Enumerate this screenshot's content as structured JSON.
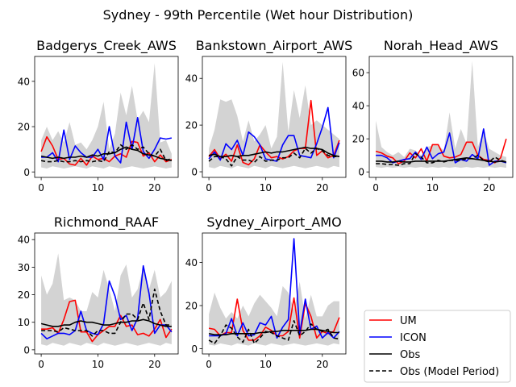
{
  "chart_data": {
    "suptitle": "Sydney - 99th Percentile (Wet hour Distribution)",
    "legend": {
      "placement": "bottom-right",
      "entries": [
        {
          "label": "UM",
          "color": "#ff0000",
          "style": "solid"
        },
        {
          "label": "ICON",
          "color": "#0000ff",
          "style": "solid"
        },
        {
          "label": "Obs",
          "color": "#000000",
          "style": "solid"
        },
        {
          "label": "Obs (Model Period)",
          "color": "#000000",
          "style": "dashed"
        }
      ]
    },
    "band_color": "#d3d3d3",
    "panels": [
      {
        "title": "Badgerys_Creek_AWS",
        "type": "line",
        "x": [
          0,
          1,
          2,
          3,
          4,
          5,
          6,
          7,
          8,
          9,
          10,
          11,
          12,
          13,
          14,
          15,
          16,
          17,
          18,
          19,
          20,
          21,
          22,
          23
        ],
        "xticks": [
          0,
          10,
          20
        ],
        "xlim": [
          -1.15,
          24.15
        ],
        "ylim": [
          -2.4,
          51
        ],
        "yticks": [
          0,
          20,
          40
        ],
        "band_low": [
          2,
          1.5,
          2.5,
          2,
          1.5,
          2,
          2.5,
          2,
          1.5,
          2.5,
          2,
          1.5,
          2.5,
          2,
          1.5,
          2,
          2.5,
          2,
          1.5,
          2,
          2.5,
          2,
          1.5,
          2
        ],
        "band_high": [
          14,
          20,
          14,
          18,
          13,
          22,
          12,
          13,
          10,
          14,
          20,
          31,
          10,
          17,
          35,
          25,
          38,
          23,
          27,
          22,
          48,
          13,
          14,
          8
        ],
        "series": [
          {
            "name": "UM",
            "color": "#ff0000",
            "dash": false,
            "values": [
              9,
              15.5,
              11.5,
              5.5,
              6,
              3.5,
              3,
              6,
              3,
              7,
              5.5,
              6,
              4.5,
              7,
              8,
              6.5,
              13.5,
              13,
              7,
              8.5,
              4.5,
              7.5,
              4.5,
              5.5
            ]
          },
          {
            "name": "ICON",
            "color": "#0000ff",
            "dash": false,
            "values": [
              6.5,
              6.5,
              8.5,
              4.5,
              18.5,
              5.5,
              11.5,
              8.5,
              6.5,
              6.5,
              10,
              5.5,
              20,
              7,
              4,
              22,
              10,
              24,
              9,
              6,
              10,
              15,
              14.5,
              15
            ]
          },
          {
            "name": "Obs",
            "color": "#000000",
            "dash": false,
            "values": [
              7,
              6.5,
              6,
              6.5,
              6,
              6.5,
              6.5,
              7,
              6.5,
              7.5,
              7,
              8,
              8,
              8.5,
              10,
              11,
              10,
              9.5,
              8,
              7.5,
              7,
              6,
              5.5,
              5
            ]
          },
          {
            "name": "Obs (Model Period)",
            "color": "#000000",
            "dash": true,
            "values": [
              5,
              4.5,
              4.5,
              5,
              4.5,
              4.5,
              5,
              4.5,
              5,
              4.5,
              5,
              4.5,
              9,
              8.5,
              12,
              10,
              12,
              10,
              11,
              8,
              7,
              10,
              5,
              6
            ]
          }
        ]
      },
      {
        "title": "Bankstown_Airport_AWS",
        "type": "line",
        "x": [
          0,
          1,
          2,
          3,
          4,
          5,
          6,
          7,
          8,
          9,
          10,
          11,
          12,
          13,
          14,
          15,
          16,
          17,
          18,
          19,
          20,
          21,
          22,
          23
        ],
        "xticks": [
          0,
          10,
          20
        ],
        "xlim": [
          -1.15,
          24.15
        ],
        "ylim": [
          -2.4,
          49.4
        ],
        "yticks": [
          0,
          20,
          40
        ],
        "band_low": [
          2,
          1.5,
          2.5,
          2,
          1.5,
          2.5,
          2,
          1.5,
          2.5,
          2,
          1.5,
          2.5,
          2,
          1.5,
          2,
          2.5,
          2,
          1.5,
          2,
          2.5,
          2,
          1.5,
          2.5,
          2
        ],
        "band_high": [
          10,
          18,
          31,
          30,
          31,
          24,
          13,
          22,
          13,
          16,
          20,
          10,
          15,
          47,
          17,
          35,
          23,
          37,
          20,
          22,
          20,
          18,
          16,
          14
        ],
        "series": [
          {
            "name": "UM",
            "color": "#ff0000",
            "dash": false,
            "values": [
              6.5,
              9.5,
              5.5,
              7.5,
              4.5,
              11.5,
              4,
              3,
              5.5,
              11.5,
              8.5,
              6,
              6.5,
              5.5,
              6.5,
              9,
              10,
              10,
              30.5,
              7,
              9,
              6,
              7,
              13.5
            ]
          },
          {
            "name": "ICON",
            "color": "#0000ff",
            "dash": false,
            "values": [
              5.5,
              8.5,
              5,
              12,
              9.5,
              13.5,
              7,
              17,
              15,
              11.5,
              5.5,
              5,
              4.5,
              11.5,
              15.5,
              15.5,
              7,
              6.5,
              6,
              12,
              19,
              27.5,
              6,
              12.5
            ]
          },
          {
            "name": "Obs",
            "color": "#000000",
            "dash": false,
            "values": [
              7,
              7.5,
              6.5,
              6.5,
              7,
              6.5,
              7,
              7,
              7.5,
              8,
              8.5,
              8,
              8.5,
              8.5,
              9,
              9.5,
              10,
              10.5,
              10,
              10,
              9.5,
              8,
              7,
              6.5
            ]
          },
          {
            "name": "Obs (Model Period)",
            "color": "#000000",
            "dash": true,
            "values": [
              4.5,
              6.5,
              6.5,
              5.5,
              2.5,
              6.5,
              5,
              5,
              4,
              6.5,
              4.5,
              5,
              5,
              6,
              6,
              8,
              6,
              10,
              8,
              10,
              9,
              7,
              6.5,
              6.5
            ]
          }
        ]
      },
      {
        "title": "Norah_Head_AWS",
        "type": "line",
        "x": [
          0,
          1,
          2,
          3,
          4,
          5,
          6,
          7,
          8,
          9,
          10,
          11,
          12,
          13,
          14,
          15,
          16,
          17,
          18,
          19,
          20,
          21,
          22,
          23
        ],
        "xticks": [
          0,
          10,
          20
        ],
        "xlim": [
          -1.15,
          24.15
        ],
        "ylim": [
          -3.3,
          69.8
        ],
        "yticks": [
          0,
          20,
          40,
          60
        ],
        "band_low": [
          3,
          2.5,
          3,
          2.5,
          3,
          2.5,
          3,
          2.5,
          3,
          2.5,
          3,
          2.5,
          3,
          2.5,
          3,
          2.5,
          3,
          2.5,
          3,
          2.5,
          3,
          2.5,
          3,
          2.5
        ],
        "band_high": [
          31,
          15,
          12,
          10,
          12,
          9,
          14,
          13,
          10,
          15,
          16,
          16,
          13,
          36,
          14,
          26,
          17,
          67,
          15,
          25,
          14,
          12,
          10,
          9
        ],
        "series": [
          {
            "name": "UM",
            "color": "#ff0000",
            "dash": false,
            "values": [
              12.5,
              11.5,
              9.5,
              8.5,
              5,
              6.5,
              11.5,
              8.5,
              14,
              6.5,
              16.5,
              16.5,
              9.5,
              8.5,
              9,
              10.5,
              18,
              18,
              10,
              7.5,
              7,
              5.5,
              8.5,
              20
            ]
          },
          {
            "name": "ICON",
            "color": "#0000ff",
            "dash": false,
            "values": [
              10,
              10,
              8.5,
              5.5,
              6.5,
              7.5,
              8,
              12,
              7.5,
              15,
              8,
              11,
              12,
              23.5,
              5.5,
              7.5,
              6.5,
              10.5,
              8,
              26,
              4,
              6.5,
              6.5,
              5.5
            ]
          },
          {
            "name": "Obs",
            "color": "#000000",
            "dash": false,
            "values": [
              6.5,
              6.5,
              6,
              6,
              6.5,
              6,
              6,
              6.5,
              6.5,
              6.5,
              6.5,
              6.5,
              6.5,
              7,
              7.5,
              8,
              8.5,
              8,
              7.5,
              7,
              6.5,
              6,
              6.5,
              6
            ]
          },
          {
            "name": "Obs (Model Period)",
            "color": "#000000",
            "dash": true,
            "values": [
              5,
              5,
              4.5,
              4.5,
              4,
              5,
              5,
              11,
              9,
              5.5,
              5.5,
              7,
              6,
              7,
              7,
              7,
              8,
              8,
              10,
              7,
              6,
              9,
              7,
              6
            ]
          }
        ]
      },
      {
        "title": "Richmond_RAAF",
        "type": "line",
        "x": [
          0,
          1,
          2,
          3,
          4,
          5,
          6,
          7,
          8,
          9,
          10,
          11,
          12,
          13,
          14,
          15,
          16,
          17,
          18,
          19,
          20,
          21,
          22,
          23
        ],
        "xticks": [
          0,
          10,
          20
        ],
        "xlim": [
          -1.15,
          24.15
        ],
        "ylim": [
          -1.5,
          42.4
        ],
        "yticks": [
          0,
          10,
          20,
          30,
          40
        ],
        "band_low": [
          2,
          1.5,
          2.5,
          2,
          1.5,
          2.5,
          2,
          1.5,
          2.5,
          2,
          1.5,
          2.5,
          2,
          1.5,
          2,
          2.5,
          2,
          1.5,
          2,
          2.5,
          2,
          1.5,
          2.5,
          2
        ],
        "band_high": [
          27,
          20,
          24,
          35,
          18,
          19,
          18,
          14,
          14,
          21,
          19,
          29,
          22,
          14,
          27,
          31,
          19,
          22,
          30,
          22,
          29,
          19,
          21,
          25
        ],
        "series": [
          {
            "name": "UM",
            "color": "#ff0000",
            "dash": false,
            "values": [
              7.5,
              7.5,
              8,
              6,
              11,
              17.5,
              18,
              6.5,
              6.5,
              3,
              5.5,
              7,
              8.5,
              8.5,
              12.5,
              8.5,
              9,
              5.5,
              6,
              5,
              7.5,
              11,
              4.5,
              7.5
            ]
          },
          {
            "name": "ICON",
            "color": "#0000ff",
            "dash": false,
            "values": [
              6,
              4,
              5,
              6,
              6,
              5.5,
              7,
              14,
              7,
              6,
              5.5,
              9.5,
              25,
              19.5,
              11,
              12.5,
              7,
              11.5,
              30.5,
              20.5,
              6,
              9,
              9,
              6.5
            ]
          },
          {
            "name": "Obs",
            "color": "#000000",
            "dash": false,
            "values": [
              9.5,
              9,
              8.5,
              8.5,
              9,
              9,
              10,
              10.5,
              10,
              10,
              9.5,
              9,
              9,
              9.5,
              10,
              10,
              10.5,
              10.5,
              11,
              10.5,
              9.5,
              9,
              8.5,
              8.5
            ]
          },
          {
            "name": "Obs (Model Period)",
            "color": "#000000",
            "dash": true,
            "values": [
              7,
              7,
              7,
              6.5,
              8,
              7.5,
              7,
              7,
              7,
              5,
              7,
              7,
              6,
              6,
              10,
              13,
              13,
              11,
              17,
              11,
              22,
              14,
              9,
              9
            ]
          }
        ]
      },
      {
        "title": "Sydney_Airport_AMO",
        "type": "line",
        "x": [
          0,
          1,
          2,
          3,
          4,
          5,
          6,
          7,
          8,
          9,
          10,
          11,
          12,
          13,
          14,
          15,
          16,
          17,
          18,
          19,
          20,
          21,
          22,
          23
        ],
        "xticks": [
          0,
          10,
          20
        ],
        "xlim": [
          -1.15,
          24.15
        ],
        "ylim": [
          -2.4,
          53.6
        ],
        "yticks": [
          0,
          20,
          40
        ],
        "band_low": [
          2,
          1.5,
          2.5,
          2,
          1.5,
          2.5,
          2,
          1.5,
          2.5,
          2,
          1.5,
          2.5,
          2,
          1.5,
          2,
          2.5,
          2,
          1.5,
          2,
          2.5,
          2,
          1.5,
          2.5,
          2
        ],
        "band_high": [
          16,
          26,
          19,
          14,
          17,
          14,
          20,
          15,
          21,
          25,
          22,
          19,
          15,
          29,
          26,
          18,
          31,
          14,
          25,
          15,
          15,
          20,
          22,
          22
        ],
        "series": [
          {
            "name": "UM",
            "color": "#ff0000",
            "dash": false,
            "values": [
              9.5,
              9,
              6,
              7.5,
              7.5,
              23,
              8.5,
              4,
              4,
              6,
              10,
              8.5,
              6,
              6,
              8,
              23.5,
              5,
              21,
              15,
              5,
              8,
              7,
              8,
              14.5
            ]
          },
          {
            "name": "ICON",
            "color": "#0000ff",
            "dash": false,
            "values": [
              6,
              6,
              6,
              7,
              14,
              6,
              12,
              6,
              6.5,
              12,
              11,
              15,
              5,
              10,
              13.5,
              51,
              7,
              23,
              9,
              10.5,
              5,
              7.5,
              5,
              8
            ]
          },
          {
            "name": "Obs",
            "color": "#000000",
            "dash": false,
            "values": [
              7,
              6.5,
              6.5,
              6.5,
              7,
              7,
              7,
              7,
              7,
              7.5,
              7.5,
              8,
              8,
              8.5,
              8.5,
              8.5,
              8.5,
              8.5,
              9,
              9,
              8.5,
              8,
              7.5,
              7.5
            ]
          },
          {
            "name": "Obs (Model Period)",
            "color": "#000000",
            "dash": true,
            "values": [
              4,
              2.5,
              6,
              11,
              9.5,
              5.5,
              3,
              9,
              2.5,
              5,
              8,
              7.5,
              6,
              5,
              4,
              13,
              6,
              8,
              11.5,
              9,
              8,
              9,
              5,
              4.5
            ]
          }
        ]
      }
    ]
  }
}
